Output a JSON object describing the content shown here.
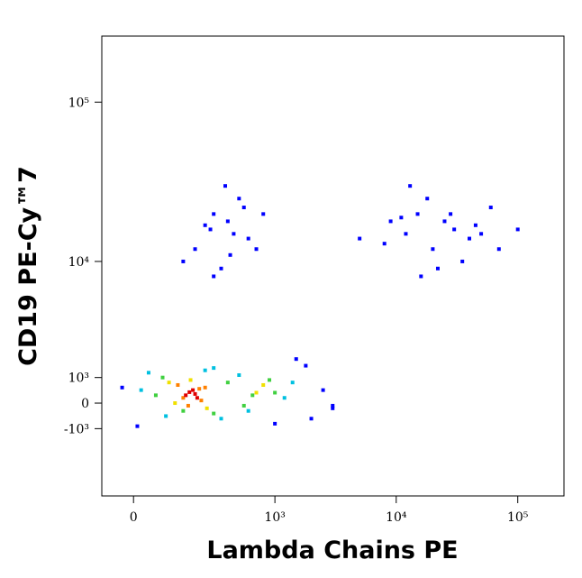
{
  "chart_data": {
    "type": "scatter",
    "x_label": "Lambda Chains PE",
    "y_label": "CD19 PE-Cy™7",
    "xscale": "biexponential",
    "yscale": "biexponential",
    "xlim": [
      -88,
      240000
    ],
    "ylim": [
      -4700,
      258000
    ],
    "xticks": [
      0,
      {
        "value": 1000,
        "label": "10³"
      },
      {
        "value": 10000,
        "label": "10⁴"
      },
      {
        "value": 100000,
        "label": "10⁵"
      }
    ],
    "yticks": [
      {
        "value": -1000,
        "label": "-10³"
      },
      0,
      {
        "value": 1000,
        "label": "10³"
      },
      {
        "value": 10000,
        "label": "10⁴"
      },
      {
        "value": 100000,
        "label": "10⁵"
      }
    ],
    "series": [
      {
        "color": "#0000ff",
        "x": [
          10,
          -30,
          2000,
          2500,
          1800,
          3000,
          450,
          200,
          1500,
          300,
          400,
          350,
          500,
          250,
          600,
          420,
          380,
          300,
          550,
          280,
          700,
          150,
          800,
          12000,
          15000,
          20000,
          25000,
          30000,
          40000,
          18000,
          9000,
          50000,
          60000,
          35000,
          22000,
          8000,
          13000,
          28000,
          45000,
          70000,
          100000,
          11000,
          5000,
          3000,
          1000,
          16000
        ],
        "y": [
          -900,
          600,
          -600,
          500,
          1500,
          -200,
          15000,
          12000,
          1800,
          20000,
          18000,
          9000,
          25000,
          17000,
          14000,
          11000,
          30000,
          8000,
          22000,
          16000,
          12000,
          10000,
          20000,
          15000,
          20000,
          12000,
          18000,
          16000,
          14000,
          25000,
          18000,
          15000,
          22000,
          10000,
          9000,
          13000,
          30000,
          20000,
          17000,
          12000,
          16000,
          19000,
          14000,
          -100,
          -800,
          8000
        ]
      },
      {
        "color": "#00c0e0",
        "x": [
          40,
          350,
          90,
          250,
          1200,
          600,
          500,
          1400,
          20,
          300
        ],
        "y": [
          1200,
          -600,
          -500,
          1300,
          200,
          -300,
          1100,
          800,
          500,
          1400
        ]
      },
      {
        "color": "#40d040",
        "x": [
          80,
          300,
          60,
          150,
          650,
          900,
          1000,
          550,
          400
        ],
        "y": [
          1000,
          -400,
          300,
          -300,
          300,
          900,
          400,
          -100,
          800
        ]
      },
      {
        "color": "#f0e000",
        "x": [
          100,
          260,
          180,
          120,
          700,
          800
        ],
        "y": [
          800,
          -200,
          900,
          0,
          400,
          700
        ]
      },
      {
        "color": "#ff8000",
        "x": [
          130,
          230,
          170,
          250,
          150,
          220
        ],
        "y": [
          700,
          100,
          -100,
          600,
          200,
          550
        ]
      },
      {
        "color": "#e00000",
        "x": [
          160,
          190,
          210,
          175,
          200
        ],
        "y": [
          300,
          500,
          200,
          420,
          350
        ]
      }
    ]
  }
}
